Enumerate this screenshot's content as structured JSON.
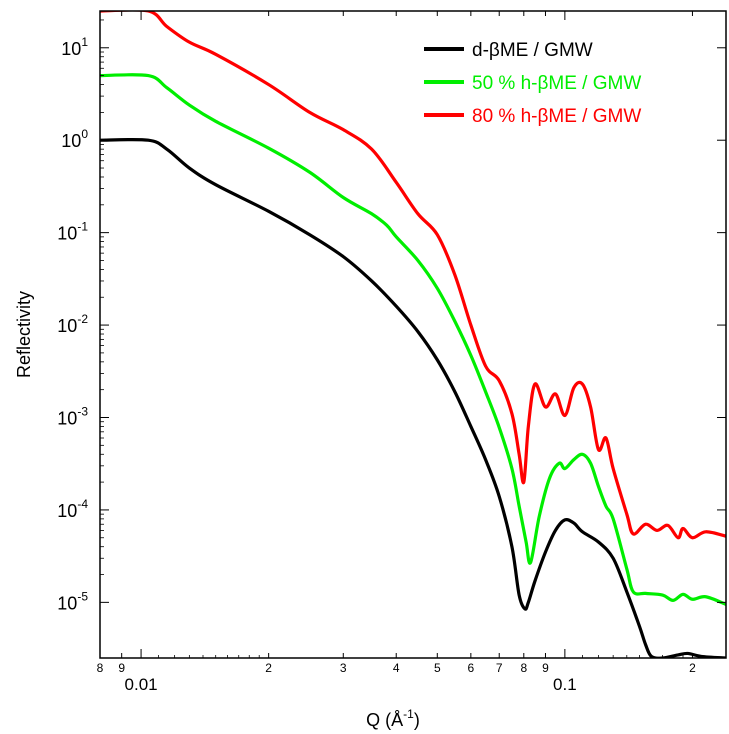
{
  "chart_data": {
    "type": "line",
    "title": "",
    "xlabel_base": "Q (Å",
    "xlabel_exp": "-1",
    "xlabel_close": ")",
    "ylabel": "Reflectivity",
    "xscale": "log",
    "yscale": "log",
    "xlim": [
      0.008,
      0.24
    ],
    "ylim": [
      2.5e-06,
      25
    ],
    "grid": false,
    "legend_position": "top-right",
    "x_ticks": [
      {
        "value": 0.008,
        "label": "8",
        "major": false
      },
      {
        "value": 0.009,
        "label": "9",
        "major": false
      },
      {
        "value": 0.01,
        "label": "0.01",
        "major": true
      },
      {
        "value": 0.02,
        "label": "2",
        "major": false
      },
      {
        "value": 0.03,
        "label": "3",
        "major": false
      },
      {
        "value": 0.04,
        "label": "4",
        "major": false
      },
      {
        "value": 0.05,
        "label": "5",
        "major": false
      },
      {
        "value": 0.06,
        "label": "6",
        "major": false
      },
      {
        "value": 0.07,
        "label": "7",
        "major": false
      },
      {
        "value": 0.08,
        "label": "8",
        "major": false
      },
      {
        "value": 0.09,
        "label": "9",
        "major": false
      },
      {
        "value": 0.1,
        "label": "0.1",
        "major": true
      },
      {
        "value": 0.2,
        "label": "2",
        "major": false
      }
    ],
    "y_ticks": [
      {
        "value": 10,
        "base": "10",
        "exp": "1"
      },
      {
        "value": 1,
        "base": "10",
        "exp": "0"
      },
      {
        "value": 0.1,
        "base": "10",
        "exp": "-1"
      },
      {
        "value": 0.01,
        "base": "10",
        "exp": "-2"
      },
      {
        "value": 0.001,
        "base": "10",
        "exp": "-3"
      },
      {
        "value": 0.0001,
        "base": "10",
        "exp": "-4"
      },
      {
        "value": 1e-05,
        "base": "10",
        "exp": "-5"
      }
    ],
    "series": [
      {
        "name": "d-βME / GMW",
        "color": "#000000",
        "x": [
          0.008,
          0.0104,
          0.0115,
          0.013,
          0.015,
          0.02,
          0.025,
          0.03,
          0.035,
          0.04,
          0.045,
          0.05,
          0.055,
          0.06,
          0.065,
          0.07,
          0.075,
          0.078,
          0.0805,
          0.082,
          0.085,
          0.09,
          0.095,
          0.1,
          0.105,
          0.11,
          0.12,
          0.13,
          0.14,
          0.15,
          0.155,
          0.16,
          0.17,
          0.185,
          0.195,
          0.21,
          0.24
        ],
        "y": [
          1.0,
          1.0,
          0.8,
          0.5,
          0.33,
          0.17,
          0.095,
          0.055,
          0.03,
          0.016,
          0.0085,
          0.0042,
          0.0019,
          0.0008,
          0.00035,
          0.00014,
          4e-05,
          1.2e-05,
          8.5e-06,
          1e-05,
          1.7e-05,
          3.5e-05,
          6e-05,
          7.8e-05,
          7.2e-05,
          5.8e-05,
          4.5e-05,
          3e-05,
          1.3e-05,
          5.5e-06,
          3.5e-06,
          2.6e-06,
          2.5e-06,
          2.7e-06,
          2.8e-06,
          2.6e-06,
          2.5e-06
        ]
      },
      {
        "name": "50 % h-βME / GMW",
        "color": "#00ee00",
        "x": [
          0.008,
          0.0104,
          0.0115,
          0.013,
          0.015,
          0.02,
          0.025,
          0.03,
          0.035,
          0.038,
          0.04,
          0.045,
          0.05,
          0.055,
          0.06,
          0.065,
          0.07,
          0.075,
          0.078,
          0.081,
          0.083,
          0.087,
          0.092,
          0.097,
          0.1,
          0.105,
          0.11,
          0.115,
          0.12,
          0.125,
          0.13,
          0.14,
          0.145,
          0.155,
          0.17,
          0.18,
          0.19,
          0.2,
          0.215,
          0.24
        ],
        "y": [
          5.0,
          5.0,
          3.7,
          2.4,
          1.6,
          0.82,
          0.45,
          0.24,
          0.16,
          0.12,
          0.09,
          0.05,
          0.025,
          0.011,
          0.0047,
          0.0019,
          0.00078,
          0.00028,
          0.00011,
          4.5e-05,
          2.7e-05,
          8.5e-05,
          0.00022,
          0.00032,
          0.00028,
          0.00035,
          0.0004,
          0.00032,
          0.00018,
          0.00011,
          8e-05,
          2.3e-05,
          1.3e-05,
          1.25e-05,
          1.2e-05,
          1.05e-05,
          1.22e-05,
          1.08e-05,
          1.15e-05,
          9.5e-06
        ]
      },
      {
        "name": "80 % h-βME / GMW",
        "color": "#ff0000",
        "x": [
          0.008,
          0.0104,
          0.0115,
          0.013,
          0.015,
          0.02,
          0.025,
          0.03,
          0.035,
          0.04,
          0.045,
          0.05,
          0.055,
          0.06,
          0.065,
          0.07,
          0.075,
          0.078,
          0.08,
          0.082,
          0.085,
          0.09,
          0.095,
          0.1,
          0.105,
          0.11,
          0.115,
          0.12,
          0.125,
          0.13,
          0.14,
          0.145,
          0.155,
          0.165,
          0.175,
          0.185,
          0.19,
          0.2,
          0.215,
          0.24
        ],
        "y": [
          25,
          25,
          17,
          11.5,
          8.5,
          4.0,
          2.0,
          1.3,
          0.8,
          0.35,
          0.16,
          0.095,
          0.035,
          0.01,
          0.0036,
          0.0025,
          0.0011,
          0.0004,
          0.0002,
          0.0008,
          0.0023,
          0.0013,
          0.0018,
          0.00105,
          0.0021,
          0.0023,
          0.0013,
          0.00045,
          0.0006,
          0.00028,
          9e-05,
          5.5e-05,
          7e-05,
          6e-05,
          6.8e-05,
          5e-05,
          6.3e-05,
          5e-05,
          5.8e-05,
          5.2e-05
        ]
      }
    ]
  }
}
